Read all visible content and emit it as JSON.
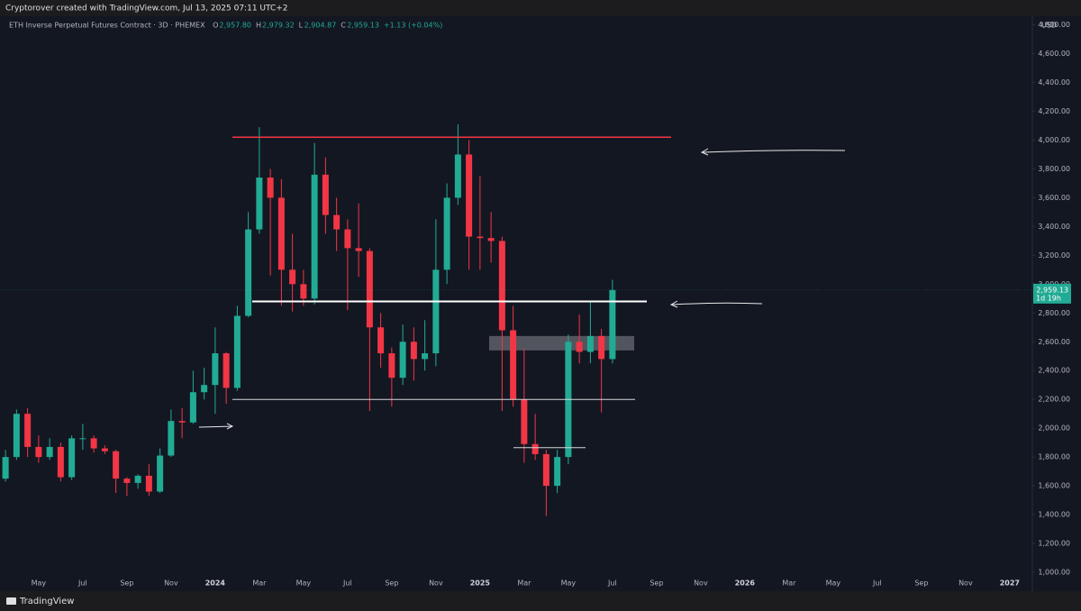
{
  "chart_data": {
    "type": "candlestick",
    "title": "ETH Inverse Perpetual Futures Contract · 3D · PHEMEX",
    "credit": "Cryptorover created with TradingView.com, Jul 13, 2025 07:11 UTC+2",
    "brand": "TradingView",
    "currency": "USD",
    "legend": [
      {
        "key": "O",
        "value": "2,957.80"
      },
      {
        "key": "H",
        "value": "2,979.32"
      },
      {
        "key": "L",
        "value": "2,904.87"
      },
      {
        "key": "C",
        "value": "2,959.13"
      }
    ],
    "change": "+1.13 (+0.04%)",
    "last_price_label": "2,959.13",
    "countdown": "1d 19h",
    "up_color": "#22ab94",
    "down_color": "#f23645",
    "categories": [
      null,
      null,
      null,
      "May",
      null,
      null,
      null,
      "Jul",
      null,
      null,
      null,
      "Sep",
      null,
      null,
      null,
      "Nov",
      null,
      null,
      null,
      "2024",
      null,
      null,
      null,
      "Mar",
      null,
      null,
      null,
      "May",
      null,
      null,
      null,
      "Jul",
      null,
      null,
      null,
      "Sep",
      null,
      null,
      null,
      "Nov",
      null,
      null,
      null,
      "2025",
      null,
      null,
      null,
      "Mar",
      null,
      null,
      null,
      "May",
      null,
      null,
      null,
      "Jul",
      null,
      null,
      null,
      "Sep",
      null,
      null,
      null,
      "Nov",
      null,
      null,
      null,
      "2026",
      null,
      null,
      null,
      "Mar",
      null,
      null,
      null,
      "May",
      null,
      null,
      null,
      "Jul",
      null,
      null,
      null,
      "Sep",
      null,
      null,
      null,
      "Nov",
      null,
      null,
      null,
      "2027",
      null,
      null
    ],
    "open": [
      1650,
      1800,
      2100,
      1870,
      1800,
      1870,
      1660,
      1930,
      1930,
      1860,
      1840,
      1650,
      1620,
      1670,
      1560,
      1810,
      2050,
      2040,
      2250,
      2300,
      2520,
      2280,
      2780,
      3380,
      3740,
      3600,
      3100,
      3000,
      2900,
      3760,
      3480,
      3380,
      3250,
      3230,
      2700,
      2520,
      2350,
      2600,
      2480,
      2520,
      3100,
      3600,
      3900,
      3330,
      3320,
      3300,
      2680,
      2200,
      1890,
      1820,
      1600,
      1800,
      2600,
      2530,
      2640,
      2480,
      null,
      null,
      null,
      null,
      null,
      null,
      null,
      null,
      null,
      null,
      null,
      null,
      null,
      null,
      null,
      null,
      null,
      null,
      null,
      null,
      null,
      null,
      null,
      null,
      null,
      null,
      null,
      null,
      null,
      null,
      null,
      null,
      null,
      null,
      null,
      null,
      null,
      null
    ],
    "high": [
      1850,
      2130,
      2140,
      1950,
      1930,
      1900,
      1950,
      2030,
      1950,
      1880,
      1850,
      1660,
      1680,
      1750,
      1860,
      2130,
      2140,
      2400,
      2420,
      2700,
      2530,
      2850,
      3500,
      4090,
      3800,
      3730,
      3350,
      3100,
      3980,
      3880,
      3600,
      3450,
      3560,
      3250,
      2800,
      2560,
      2720,
      2700,
      2750,
      3450,
      3700,
      4110,
      4000,
      3750,
      3500,
      3330,
      2850,
      2550,
      2100,
      1850,
      1850,
      2650,
      2790,
      2880,
      2690,
      3030,
      null,
      null,
      null,
      null,
      null,
      null,
      null,
      null,
      null,
      null,
      null,
      null,
      null,
      null,
      null,
      null,
      null,
      null,
      null,
      null,
      null,
      null,
      null,
      null,
      null,
      null,
      null,
      null,
      null,
      null,
      null,
      null,
      null,
      null,
      null,
      null,
      null,
      null
    ],
    "low": [
      1630,
      1780,
      1800,
      1760,
      1780,
      1630,
      1640,
      1850,
      1830,
      1820,
      1550,
      1530,
      1580,
      1530,
      1550,
      1800,
      1930,
      2030,
      2200,
      2100,
      2170,
      2260,
      2770,
      3350,
      3060,
      2850,
      2810,
      2850,
      2860,
      3350,
      3230,
      2820,
      3050,
      2120,
      2420,
      2150,
      2300,
      2330,
      2400,
      2430,
      3000,
      3550,
      3100,
      3100,
      3150,
      2120,
      2150,
      1760,
      1780,
      1390,
      1550,
      1750,
      2450,
      2450,
      2110,
      2450,
      null,
      null,
      null,
      null,
      null,
      null,
      null,
      null,
      null,
      null,
      null,
      null,
      null,
      null,
      null,
      null,
      null,
      null,
      null,
      null,
      null,
      null,
      null,
      null,
      null,
      null,
      null,
      null,
      null,
      null,
      null,
      null,
      null,
      null,
      null,
      null,
      null,
      null
    ],
    "close": [
      1800,
      2100,
      1870,
      1800,
      1870,
      1660,
      1930,
      1930,
      1860,
      1840,
      1650,
      1620,
      1670,
      1560,
      1810,
      2050,
      2040,
      2250,
      2300,
      2520,
      2280,
      2780,
      3380,
      3740,
      3600,
      3100,
      3000,
      2900,
      3760,
      3480,
      3380,
      3250,
      3230,
      2700,
      2520,
      2350,
      2600,
      2480,
      2520,
      3100,
      3600,
      3900,
      3330,
      3320,
      3300,
      2680,
      2200,
      1890,
      1820,
      1600,
      1800,
      2600,
      2530,
      2640,
      2480,
      2959.13,
      null,
      null,
      null,
      null,
      null,
      null,
      null,
      null,
      null,
      null,
      null,
      null,
      null,
      null,
      null,
      null,
      null,
      null,
      null,
      null,
      null,
      null,
      null,
      null,
      null,
      null,
      null,
      null,
      null,
      null,
      null,
      null,
      null,
      null,
      null,
      null,
      null,
      null
    ],
    "ylim": [
      900,
      4860
    ],
    "yticks": [
      {
        "value": 1000,
        "label": "1,000.00"
      },
      {
        "value": 1200,
        "label": "1,200.00"
      },
      {
        "value": 1400,
        "label": "1,400.00"
      },
      {
        "value": 1600,
        "label": "1,600.00"
      },
      {
        "value": 1800,
        "label": "1,800.00"
      },
      {
        "value": 2000,
        "label": "2,000.00"
      },
      {
        "value": 2200,
        "label": "2,200.00"
      },
      {
        "value": 2400,
        "label": "2,400.00"
      },
      {
        "value": 2600,
        "label": "2,600.00"
      },
      {
        "value": 2800,
        "label": "2,800.00"
      },
      {
        "value": 3000,
        "label": "3,000.00"
      },
      {
        "value": 3200,
        "label": "3,200.00"
      },
      {
        "value": 3400,
        "label": "3,400.00"
      },
      {
        "value": 3600,
        "label": "3,600.00"
      },
      {
        "value": 3800,
        "label": "3,800.00"
      },
      {
        "value": 4000,
        "label": "4,000.00"
      },
      {
        "value": 4200,
        "label": "4,200.00"
      },
      {
        "value": 4400,
        "label": "4,400.00"
      },
      {
        "value": 4600,
        "label": "4,600.00"
      },
      {
        "value": 4800,
        "label": "4,800.00"
      }
    ],
    "levels": [
      {
        "value": 4020,
        "color": "#f23645"
      },
      {
        "value": 2880,
        "color": "#ffffff"
      },
      {
        "value": 2200,
        "color": "#d8d8d8"
      },
      {
        "value": 1865,
        "color": "#d8d8d8"
      }
    ],
    "zone": [
      2540,
      2640
    ]
  }
}
